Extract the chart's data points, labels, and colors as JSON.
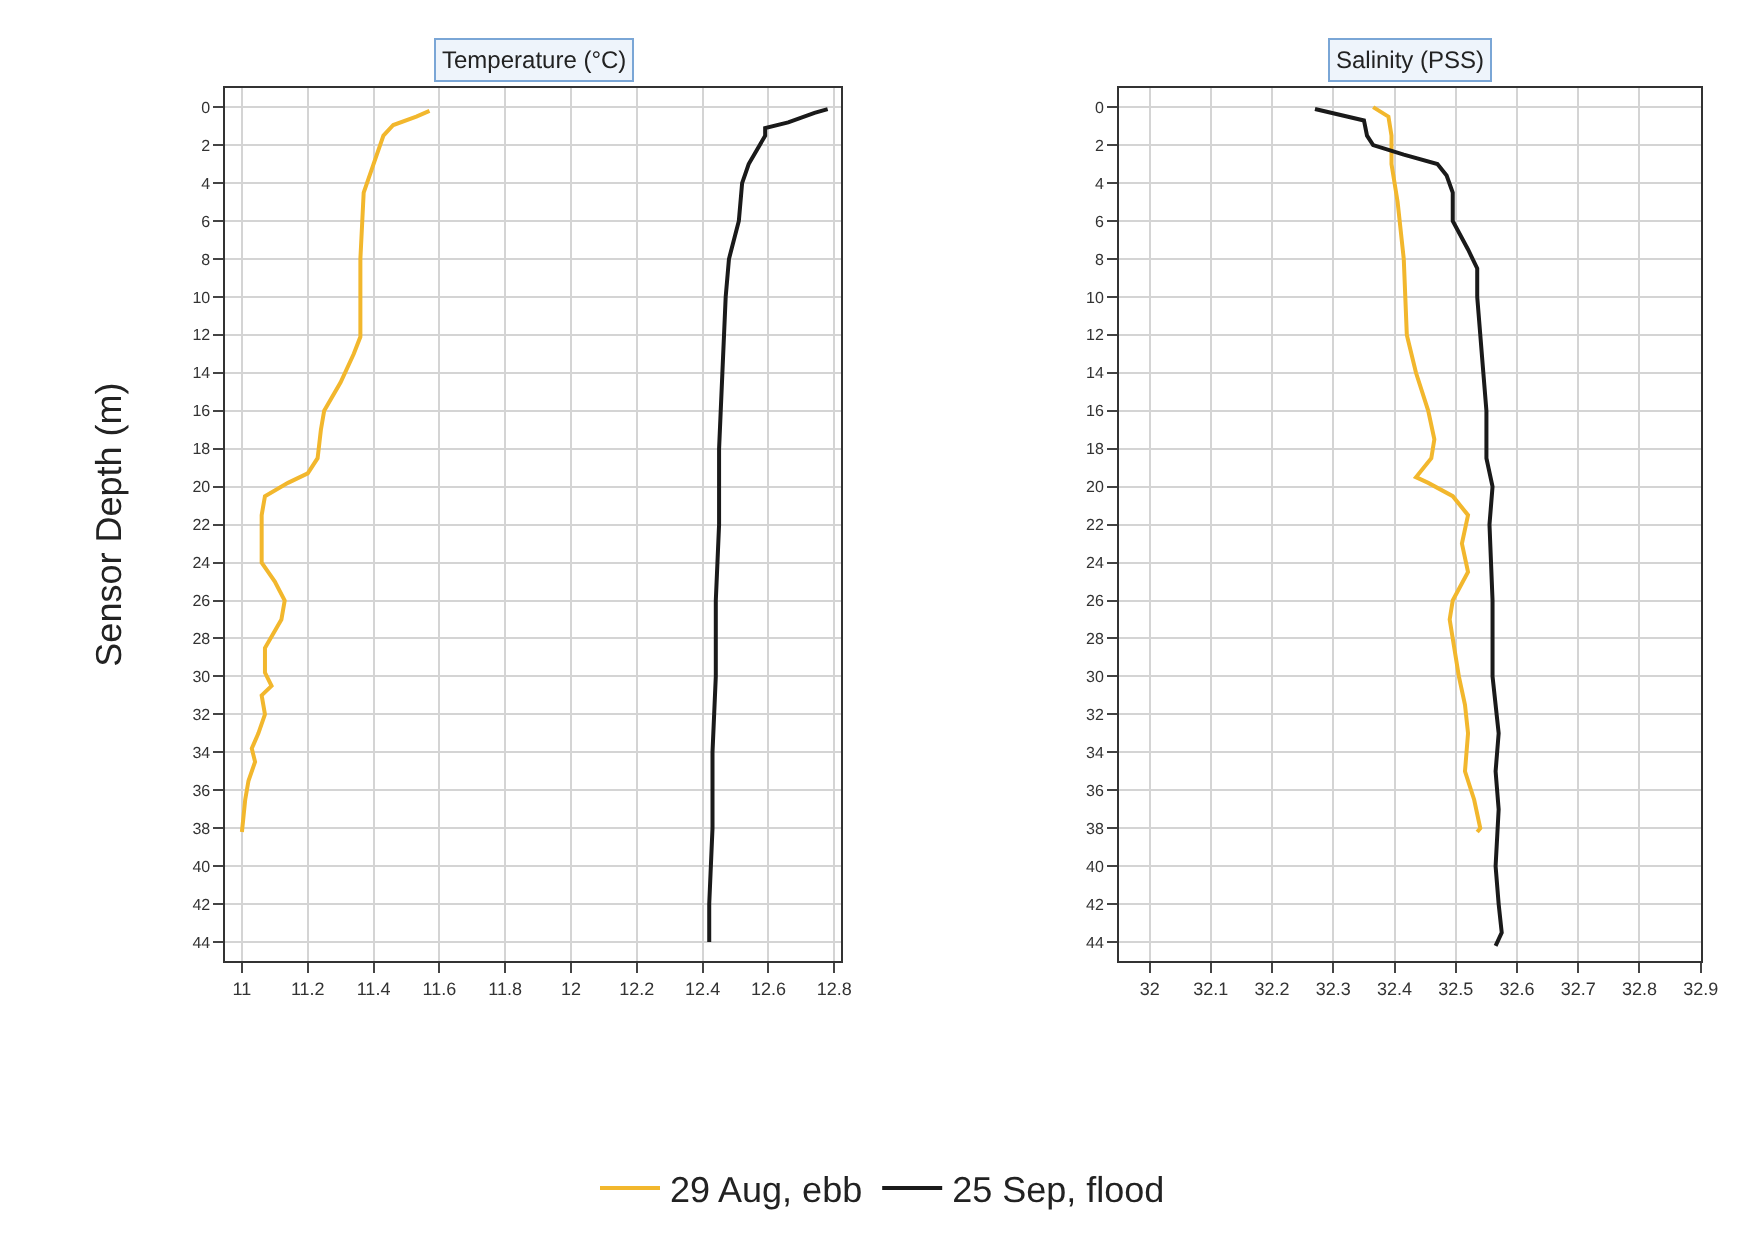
{
  "chart_data": [
    {
      "type": "line",
      "title": "Temperature (°C)",
      "ylabel": "Sensor Depth (m)",
      "orientation": "horizontal",
      "xlim": [
        10.95,
        12.82
      ],
      "xticks": [
        11,
        11.2,
        11.4,
        11.6,
        11.8,
        12,
        12.2,
        12.4,
        12.6,
        12.8
      ],
      "ylim": [
        45,
        -1
      ],
      "yticks": [
        0,
        2,
        4,
        6,
        8,
        10,
        12,
        14,
        16,
        18,
        20,
        22,
        24,
        26,
        28,
        30,
        32,
        34,
        36,
        38,
        40,
        42,
        44
      ],
      "grid": true,
      "legend": "bottom",
      "marker": "none",
      "line_style": "solid",
      "series": [
        {
          "name": "29 Aug, ebb",
          "color": "#f2b72d",
          "x": [
            0.2,
            0.5,
            0.94,
            1.5,
            3,
            4.5,
            8,
            12.1,
            13,
            14.5,
            16,
            17,
            18.5,
            19.3,
            19.8,
            20.5,
            21.5,
            24,
            25,
            26,
            27,
            28.5,
            29.8,
            30.5,
            31,
            32,
            33,
            33.8,
            34.5,
            35.5,
            36.5,
            38.2
          ],
          "values": [
            11.57,
            11.53,
            11.46,
            11.43,
            11.4,
            11.37,
            11.36,
            11.36,
            11.34,
            11.3,
            11.25,
            11.24,
            11.23,
            11.2,
            11.14,
            11.07,
            11.06,
            11.06,
            11.1,
            11.13,
            11.12,
            11.07,
            11.07,
            11.09,
            11.06,
            11.07,
            11.05,
            11.03,
            11.04,
            11.02,
            11.01,
            11.0
          ]
        },
        {
          "name": "25 Sep, flood",
          "color": "#1a1a1a",
          "x": [
            0.1,
            0.3,
            0.8,
            1.1,
            1.5,
            3,
            4,
            6,
            8,
            10,
            14,
            18,
            22,
            26,
            30,
            34,
            38,
            42,
            44
          ],
          "values": [
            12.78,
            12.74,
            12.66,
            12.59,
            12.59,
            12.54,
            12.52,
            12.51,
            12.48,
            12.47,
            12.46,
            12.45,
            12.45,
            12.44,
            12.44,
            12.43,
            12.43,
            12.42,
            12.42
          ]
        }
      ]
    },
    {
      "type": "line",
      "title": "Salinity (PSS)",
      "orientation": "horizontal",
      "xlim": [
        31.95,
        32.9
      ],
      "xticks": [
        32,
        32.1,
        32.2,
        32.3,
        32.4,
        32.5,
        32.6,
        32.7,
        32.8,
        32.9
      ],
      "ylim": [
        45,
        -1
      ],
      "yticks": [
        0,
        2,
        4,
        6,
        8,
        10,
        12,
        14,
        16,
        18,
        20,
        22,
        24,
        26,
        28,
        30,
        32,
        34,
        36,
        38,
        40,
        42,
        44
      ],
      "grid": true,
      "marker": "none",
      "line_style": "solid",
      "series": [
        {
          "color": "#f2b72d",
          "x": [
            0.0,
            0.5,
            1.5,
            3,
            5,
            8,
            12,
            14,
            16,
            17.5,
            18.5,
            19.5,
            19.8,
            20.5,
            21.5,
            23,
            24.5,
            26,
            27,
            30,
            31.5,
            33,
            35,
            36.5,
            38,
            38.2
          ],
          "values": [
            32.365,
            32.39,
            32.395,
            32.395,
            32.405,
            32.415,
            32.42,
            32.435,
            32.455,
            32.465,
            32.46,
            32.435,
            32.455,
            32.495,
            32.52,
            32.51,
            32.52,
            32.495,
            32.49,
            32.505,
            32.515,
            32.52,
            32.515,
            32.53,
            32.54,
            32.535
          ]
        },
        {
          "color": "#1a1a1a",
          "x": [
            0.1,
            0.7,
            1.5,
            2,
            2.5,
            3,
            3.6,
            4.5,
            6,
            7.5,
            8.5,
            10,
            12,
            14,
            16,
            18.5,
            20,
            22,
            26,
            30,
            33,
            35,
            37,
            40,
            42,
            43.5,
            44.2
          ],
          "values": [
            32.27,
            32.35,
            32.355,
            32.365,
            32.415,
            32.47,
            32.485,
            32.495,
            32.495,
            32.52,
            32.535,
            32.535,
            32.54,
            32.545,
            32.55,
            32.55,
            32.56,
            32.555,
            32.56,
            32.56,
            32.57,
            32.565,
            32.57,
            32.565,
            32.57,
            32.575,
            32.565
          ]
        }
      ]
    }
  ]
}
